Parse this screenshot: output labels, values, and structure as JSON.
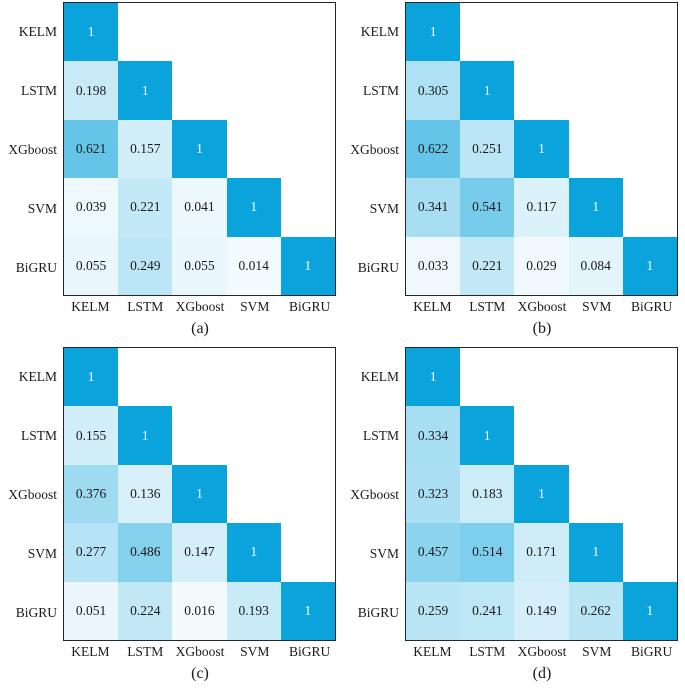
{
  "figure": {
    "description": "Four lower-triangular correlation heatmaps comparing model outputs",
    "model_labels": [
      "KELM",
      "LSTM",
      "XGboost",
      "SVM",
      "BiGRU"
    ]
  },
  "colors": {
    "colormap_low": "#f7fcfe",
    "colormap_high": "#0ba3dc",
    "matrix_border": "#262626",
    "value_text": "#1a1a1a",
    "diagonal_text": "#ffffff"
  },
  "chart_data": [
    {
      "type": "heatmap",
      "caption": "(a)",
      "title": "",
      "categories": [
        "KELM",
        "LSTM",
        "XGboost",
        "SVM",
        "BiGRU"
      ],
      "layout": "lower-triangle",
      "value_range": [
        0,
        1
      ],
      "matrix": [
        [
          1
        ],
        [
          0.198,
          1
        ],
        [
          0.621,
          0.157,
          1
        ],
        [
          0.039,
          0.221,
          0.041,
          1
        ],
        [
          0.055,
          0.249,
          0.055,
          0.014,
          1
        ]
      ]
    },
    {
      "type": "heatmap",
      "caption": "(b)",
      "title": "",
      "categories": [
        "KELM",
        "LSTM",
        "XGboost",
        "SVM",
        "BiGRU"
      ],
      "layout": "lower-triangle",
      "value_range": [
        0,
        1
      ],
      "matrix": [
        [
          1
        ],
        [
          0.305,
          1
        ],
        [
          0.622,
          0.251,
          1
        ],
        [
          0.341,
          0.541,
          0.117,
          1
        ],
        [
          0.033,
          0.221,
          0.029,
          0.084,
          1
        ]
      ]
    },
    {
      "type": "heatmap",
      "caption": "(c)",
      "title": "",
      "categories": [
        "KELM",
        "LSTM",
        "XGboost",
        "SVM",
        "BiGRU"
      ],
      "layout": "lower-triangle",
      "value_range": [
        0,
        1
      ],
      "matrix": [
        [
          1
        ],
        [
          0.155,
          1
        ],
        [
          0.376,
          0.136,
          1
        ],
        [
          0.277,
          0.486,
          0.147,
          1
        ],
        [
          0.051,
          0.224,
          0.016,
          0.193,
          1
        ]
      ]
    },
    {
      "type": "heatmap",
      "caption": "(d)",
      "title": "",
      "categories": [
        "KELM",
        "LSTM",
        "XGboost",
        "SVM",
        "BiGRU"
      ],
      "layout": "lower-triangle",
      "value_range": [
        0,
        1
      ],
      "matrix": [
        [
          1
        ],
        [
          0.334,
          1
        ],
        [
          0.323,
          0.183,
          1
        ],
        [
          0.457,
          0.514,
          0.171,
          1
        ],
        [
          0.259,
          0.241,
          0.149,
          0.262,
          1
        ]
      ]
    }
  ]
}
